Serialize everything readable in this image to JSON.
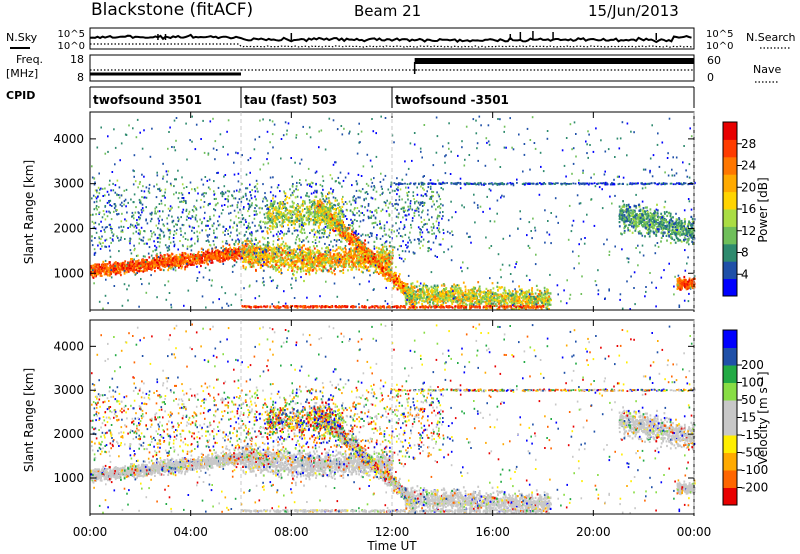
{
  "header": {
    "title": "Blackstone (fitACF)",
    "beam": "Beam 21",
    "date": "15/Jun/2013"
  },
  "top_panels": {
    "nsky_label": "N.Sky",
    "nsearch_label": "N.Search",
    "noise_ticks": [
      "10^5",
      "10^0"
    ],
    "freq_label": "Freq.",
    "freq_unit": "[MHz]",
    "freq_ticks": [
      18,
      8
    ],
    "nave_label": "Nave",
    "nave_ticks": [
      60,
      0
    ],
    "cpid_label": "CPID",
    "cpid_segments": [
      {
        "label": "twofsound 3501",
        "start_hour": 0,
        "end_hour": 6
      },
      {
        "label": "tau (fast) 503",
        "start_hour": 6,
        "end_hour": 12
      },
      {
        "label": "twofsound -3501",
        "start_hour": 12,
        "end_hour": 24
      }
    ]
  },
  "chart_data": [
    {
      "type": "heatmap",
      "name": "power",
      "ylabel": "Slant Range [km]",
      "xlabel": "",
      "xlim": [
        0,
        24
      ],
      "ylim": [
        180,
        4600
      ],
      "yticks": [
        1000,
        2000,
        3000,
        4000
      ],
      "colorbar": {
        "label": "Power [dB]",
        "ticks": [
          4,
          8,
          12,
          16,
          20,
          24,
          28
        ],
        "colors": [
          "#0000ff",
          "#1f50a8",
          "#2e8a6e",
          "#6fbf5a",
          "#aadd44",
          "#ffd400",
          "#ffaa00",
          "#ff7700",
          "#ff3c00",
          "#e80000"
        ]
      },
      "features": [
        {
          "desc_hours": [
            0,
            6
          ],
          "range_km": [
            1000,
            1600
          ],
          "power_db": 24
        },
        {
          "desc_hours": [
            6,
            12
          ],
          "range_km": [
            1000,
            2500
          ],
          "power_db": 20
        },
        {
          "desc_hours": [
            12,
            18
          ],
          "range_km": [
            250,
            700
          ],
          "power_db": 16
        },
        {
          "desc_hours": [
            21,
            24
          ],
          "range_km": [
            1800,
            2400
          ],
          "power_db": 10
        },
        {
          "desc_hours": [
            23.3,
            24
          ],
          "range_km": [
            650,
            900
          ],
          "power_db": 22
        }
      ]
    },
    {
      "type": "heatmap",
      "name": "velocity",
      "ylabel": "Slant Range [km]",
      "xlabel": "Time UT",
      "xlim": [
        0,
        24
      ],
      "ylim": [
        180,
        4600
      ],
      "yticks": [
        1000,
        2000,
        3000,
        4000
      ],
      "xticks": [
        "00:00",
        "04:00",
        "08:00",
        "12:00",
        "16:00",
        "20:00",
        "00:00"
      ],
      "colorbar": {
        "label": "Velocity [m s⁻¹]",
        "ticks": [
          -200,
          -100,
          -50,
          -15,
          15,
          50,
          100,
          200
        ],
        "colors": [
          "#e80000",
          "#ff6600",
          "#ffaa00",
          "#ffee00",
          "#c8c8c8",
          "#c8c8c8",
          "#88dd44",
          "#22aa44",
          "#1f50a8",
          "#0000ff"
        ]
      }
    }
  ]
}
